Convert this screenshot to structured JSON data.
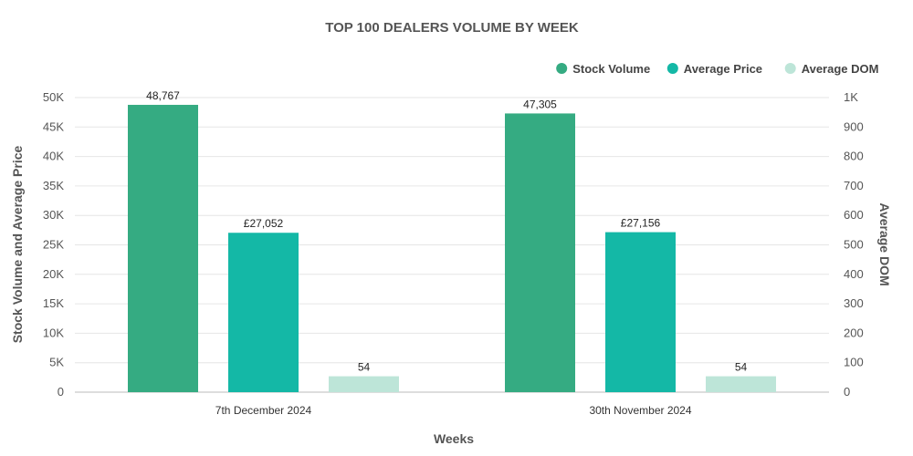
{
  "chart_data": {
    "type": "bar",
    "title": "TOP 100 DEALERS VOLUME BY WEEK",
    "xlabel": "Weeks",
    "ylabel": "Stock Volume and Average Price",
    "y2label": "Average DOM",
    "categories": [
      "7th December 2024",
      "30th November 2024"
    ],
    "ylim": [
      0,
      50000
    ],
    "y2lim": [
      0,
      1000
    ],
    "yticks": [
      "0",
      "5K",
      "10K",
      "15K",
      "20K",
      "25K",
      "30K",
      "35K",
      "40K",
      "45K",
      "50K"
    ],
    "y2ticks": [
      "0",
      "100",
      "200",
      "300",
      "400",
      "500",
      "600",
      "700",
      "800",
      "900",
      "1K"
    ],
    "legend_position": "top-right",
    "grid": true,
    "series": [
      {
        "name": "Stock Volume",
        "axis": "left",
        "color": "#35ab82",
        "values": [
          48767,
          47305
        ],
        "labels": [
          "48,767",
          "47,305"
        ]
      },
      {
        "name": "Average Price",
        "axis": "left",
        "color": "#14b8a6",
        "values": [
          27052,
          27156
        ],
        "labels": [
          "£27,052",
          "£27,156"
        ]
      },
      {
        "name": "Average DOM",
        "axis": "right",
        "color": "#bde5d8",
        "values": [
          54,
          54
        ],
        "labels": [
          "54",
          "54"
        ]
      }
    ]
  }
}
